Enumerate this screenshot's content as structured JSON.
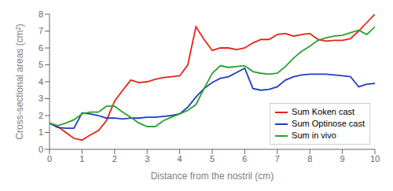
{
  "chart_data": {
    "type": "line",
    "xlabel": "Distance from the nostril (cm)",
    "ylabel": "Cross-sectional areas (cm²)",
    "x": [
      0.0,
      0.25,
      0.5,
      0.75,
      1.0,
      1.25,
      1.5,
      1.75,
      2.0,
      2.25,
      2.5,
      2.75,
      3.0,
      3.25,
      3.5,
      3.75,
      4.0,
      4.25,
      4.5,
      4.75,
      5.0,
      5.25,
      5.5,
      5.75,
      6.0,
      6.25,
      6.5,
      6.75,
      7.0,
      7.25,
      7.5,
      7.75,
      8.0,
      8.25,
      8.5,
      8.75,
      9.0,
      9.25,
      9.5,
      9.75,
      10.0
    ],
    "series": [
      {
        "name": "Sum Koken cast",
        "color": "#e8221a",
        "values": [
          1.55,
          1.35,
          1.0,
          0.65,
          0.55,
          0.85,
          1.1,
          1.7,
          2.85,
          3.5,
          4.1,
          3.95,
          4.0,
          4.15,
          4.25,
          4.3,
          4.35,
          5.0,
          7.25,
          6.5,
          5.85,
          6.0,
          6.0,
          5.9,
          6.0,
          6.3,
          6.5,
          6.5,
          6.8,
          6.85,
          6.7,
          6.8,
          6.85,
          6.5,
          6.4,
          6.45,
          6.45,
          6.55,
          7.0,
          7.5,
          8.0
        ]
      },
      {
        "name": "Sum Optinose cast",
        "color": "#1f3fbf",
        "values": [
          1.55,
          1.3,
          1.25,
          1.25,
          2.15,
          2.1,
          2.0,
          1.85,
          1.85,
          1.8,
          1.85,
          1.85,
          1.9,
          1.9,
          1.95,
          2.0,
          2.1,
          2.5,
          3.1,
          3.6,
          3.95,
          4.2,
          4.3,
          4.55,
          4.8,
          3.6,
          3.5,
          3.55,
          3.7,
          4.1,
          4.3,
          4.4,
          4.45,
          4.45,
          4.45,
          4.4,
          4.35,
          4.3,
          3.7,
          3.85,
          3.9
        ]
      },
      {
        "name": "Sum in vivo",
        "color": "#2ca02c",
        "values": [
          1.55,
          1.4,
          1.55,
          1.75,
          2.1,
          2.2,
          2.2,
          2.55,
          2.55,
          2.2,
          1.9,
          1.55,
          1.35,
          1.35,
          1.7,
          1.9,
          2.1,
          2.3,
          2.65,
          3.6,
          4.5,
          4.95,
          4.85,
          4.9,
          4.95,
          4.6,
          4.5,
          4.45,
          4.5,
          4.9,
          5.4,
          5.8,
          6.1,
          6.45,
          6.6,
          6.7,
          6.75,
          6.9,
          7.05,
          6.8,
          7.25
        ]
      }
    ],
    "xlim": [
      0,
      10
    ],
    "ylim": [
      0,
      8
    ],
    "xticks": [
      0,
      1,
      2,
      3,
      4,
      5,
      6,
      7,
      8,
      9,
      10
    ],
    "yticks": [
      0,
      1,
      2,
      3,
      4,
      5,
      6,
      7,
      8
    ],
    "legend": "lower right",
    "grid": false
  }
}
